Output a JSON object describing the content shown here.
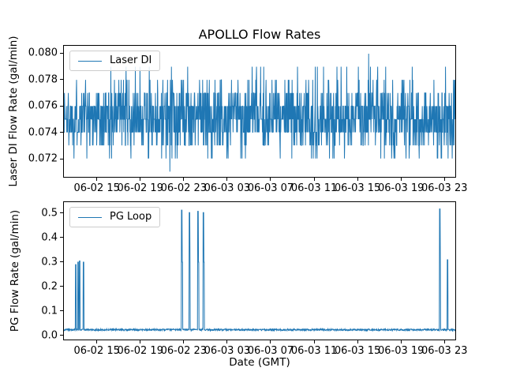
{
  "chart_data": {
    "type": "line",
    "title": "APOLLO Flow Rates",
    "xlabel": "Date (GMT)",
    "line_color": "#1f77b4",
    "grid": false,
    "legend_position": "upper left",
    "x_axis": {
      "xlim_hours_since_0602_0000": [
        11.9,
        48.07
      ],
      "ticks": [
        {
          "hour": 15,
          "label": "06-02 15"
        },
        {
          "hour": 19,
          "label": "06-02 19"
        },
        {
          "hour": 23,
          "label": "06-02 23"
        },
        {
          "hour": 27,
          "label": "06-03 03"
        },
        {
          "hour": 31,
          "label": "06-03 07"
        },
        {
          "hour": 35,
          "label": "06-03 11"
        },
        {
          "hour": 39,
          "label": "06-03 15"
        },
        {
          "hour": 43,
          "label": "06-03 19"
        },
        {
          "hour": 47,
          "label": "06-03 23"
        }
      ]
    },
    "charts": [
      {
        "name": "Laser DI",
        "legend": "Laser DI",
        "ylabel": "Laser DI Flow Rate (gal/min)",
        "ylim": [
          0.0706,
          0.0806
        ],
        "yticks": [
          {
            "v": 0.072,
            "label": "0.072"
          },
          {
            "v": 0.074,
            "label": "0.074"
          },
          {
            "v": 0.076,
            "label": "0.076"
          },
          {
            "v": 0.078,
            "label": "0.078"
          },
          {
            "v": 0.08,
            "label": "0.080"
          }
        ],
        "signal": {
          "kind": "quantized-noise",
          "data_min": 0.071,
          "data_max": 0.08,
          "levels": [
            0.072,
            0.073,
            0.074,
            0.075,
            0.076,
            0.077,
            0.078,
            0.079
          ],
          "weights": [
            0.025,
            0.095,
            0.2,
            0.245,
            0.245,
            0.125,
            0.045,
            0.02
          ],
          "points": 1519,
          "seed": 1337,
          "extremes": [
            {
              "hour": 21.7,
              "value": 0.071
            },
            {
              "hour": 40.07,
              "value": 0.08
            }
          ]
        }
      },
      {
        "name": "PG Loop",
        "legend": "PG Loop",
        "ylabel": "PG Flow Rate (gal/min)",
        "ylim": [
          -0.0194,
          0.548
        ],
        "yticks": [
          {
            "v": 0.0,
            "label": "0.0"
          },
          {
            "v": 0.1,
            "label": "0.1"
          },
          {
            "v": 0.2,
            "label": "0.2"
          },
          {
            "v": 0.3,
            "label": "0.3"
          },
          {
            "v": 0.4,
            "label": "0.4"
          },
          {
            "v": 0.5,
            "label": "0.5"
          }
        ],
        "signal": {
          "kind": "baseline-with-spikes",
          "baseline": 0.021,
          "noise_amplitude": 0.0035,
          "points": 1519,
          "seed": 777,
          "spikes": [
            {
              "hour": 12.99,
              "peak": 0.29
            },
            {
              "hour": 13.21,
              "peak": 0.3
            },
            {
              "hour": 13.35,
              "peak": 0.305
            },
            {
              "hour": 13.72,
              "peak": 0.3
            },
            {
              "hour": 22.8,
              "peak": 0.515,
              "step": 0.3
            },
            {
              "hour": 23.5,
              "peak": 0.505,
              "step": 0.3
            },
            {
              "hour": 24.3,
              "peak": 0.51,
              "step": 0.3
            },
            {
              "hour": 24.8,
              "peak": 0.505,
              "step": 0.3
            },
            {
              "hour": 46.63,
              "peak": 0.52,
              "step": 0.3
            },
            {
              "hour": 47.35,
              "peak": 0.31
            }
          ]
        }
      }
    ]
  }
}
